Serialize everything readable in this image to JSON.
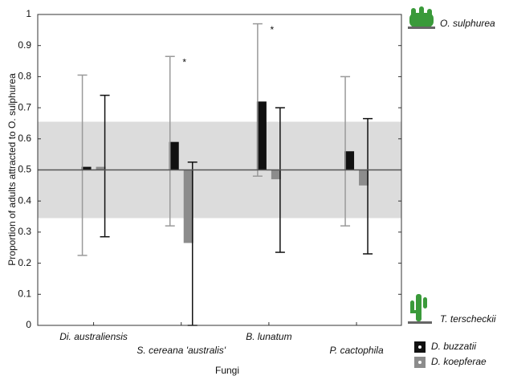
{
  "chart_data": {
    "type": "bar",
    "xlabel": "Fungi",
    "ylabel": "Proportion of adults attracted to O. sulphurea",
    "categories": [
      "Di. australiensis",
      "S. cereana 'australis'",
      "B. lunatum",
      "P. cactophila"
    ],
    "baseline": 0.5,
    "band": [
      0.345,
      0.655
    ],
    "series": [
      {
        "name": "D. buzzatii",
        "color": "#111111",
        "whisker_color": "#9a9a9a",
        "values": [
          0.51,
          0.59,
          0.72,
          0.56
        ],
        "ci_low": [
          0.225,
          0.32,
          0.48,
          0.32
        ],
        "ci_high": [
          0.805,
          0.865,
          0.97,
          0.8
        ]
      },
      {
        "name": "D. koepferae",
        "color": "#8c8c8c",
        "whisker_color": "#111111",
        "values": [
          0.51,
          0.265,
          0.47,
          0.45
        ],
        "ci_low": [
          0.285,
          0,
          0.235,
          0.23
        ],
        "ci_high": [
          0.74,
          0.525,
          0.7,
          0.665
        ]
      }
    ],
    "annotations": [
      {
        "text": "*",
        "category": 1
      },
      {
        "text": "*",
        "category": 2
      }
    ],
    "top_label": "O. sulphurea",
    "bottom_label": "T. terscheckii",
    "ylim": [
      0,
      1
    ],
    "yticks": [
      0,
      0.1,
      0.2,
      0.3,
      0.4,
      0.5,
      0.6,
      0.7,
      0.8,
      0.9,
      1
    ]
  }
}
